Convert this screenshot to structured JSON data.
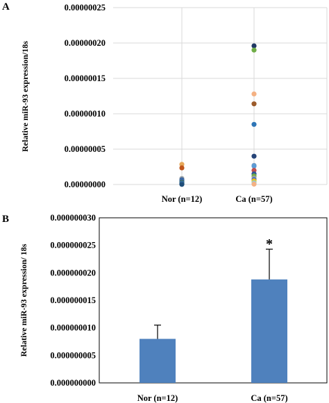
{
  "chart_data": [
    {
      "panel_label": "A",
      "type": "scatter",
      "categories": [
        "Nor (n=12)",
        "Ca (n=57)"
      ],
      "ylabel": "Relative miR-93 expression/18s",
      "ylim": [
        0,
        2.5e-07
      ],
      "yticks": [
        "0.00000000",
        "0.00000005",
        "0.00000010",
        "0.00000015",
        "0.00000020",
        "0.00000025"
      ],
      "grid": true,
      "series": [
        {
          "category": "Nor (n=12)",
          "points": [
            {
              "y": 2.85e-08,
              "color": "#e6a85a"
            },
            {
              "y": 2.35e-08,
              "color": "#c0561c"
            },
            {
              "y": 8.5e-09,
              "color": "#9aa4aa"
            },
            {
              "y": 6.5e-09,
              "color": "#2f5597"
            },
            {
              "y": 5e-09,
              "color": "#4a7fb5"
            },
            {
              "y": 3.5e-09,
              "color": "#1f3f6d"
            },
            {
              "y": 2.5e-09,
              "color": "#70ad47"
            },
            {
              "y": 2e-09,
              "color": "#3a6ea5"
            },
            {
              "y": 1.5e-09,
              "color": "#2e75b6"
            },
            {
              "y": 1e-09,
              "color": "#264478"
            },
            {
              "y": 5e-10,
              "color": "#5b9bd5"
            },
            {
              "y": 2e-10,
              "color": "#1f4e79"
            }
          ]
        },
        {
          "category": "Ca (n=57)",
          "points": [
            {
              "y": 1.96e-07,
              "color": "#203864"
            },
            {
              "y": 1.9e-07,
              "color": "#70ad47"
            },
            {
              "y": 1.28e-07,
              "color": "#f4b183"
            },
            {
              "y": 1.14e-07,
              "color": "#9c5b2b"
            },
            {
              "y": 8.5e-08,
              "color": "#2e75b6"
            },
            {
              "y": 4e-08,
              "color": "#264478"
            },
            {
              "y": 2.7e-08,
              "color": "#7f9fc3"
            },
            {
              "y": 2.6e-08,
              "color": "#5b9bd5"
            },
            {
              "y": 2e-08,
              "color": "#c05050"
            },
            {
              "y": 1.5e-08,
              "color": "#2f5597"
            },
            {
              "y": 1.2e-08,
              "color": "#70ad47"
            },
            {
              "y": 9e-09,
              "color": "#a5a5a5"
            },
            {
              "y": 7e-09,
              "color": "#4472c4"
            },
            {
              "y": 5e-09,
              "color": "#ffc000"
            },
            {
              "y": 3e-09,
              "color": "#a9d18e"
            },
            {
              "y": 1.5e-09,
              "color": "#9dc3e6"
            },
            {
              "y": 5e-10,
              "color": "#f4b183"
            }
          ]
        }
      ]
    },
    {
      "panel_label": "B",
      "type": "bar",
      "categories": [
        "Nor (n=12)",
        "Ca (n=57)"
      ],
      "values": [
        8e-09,
        1.88e-08
      ],
      "error_upper": [
        2.5e-09,
        5.5e-09
      ],
      "annotations": [
        {
          "category": "Ca (n=57)",
          "text": "*"
        }
      ],
      "ylabel": "Relative miR-93 expression/ 18s",
      "ylim": [
        0,
        3e-08
      ],
      "yticks": [
        "0.000000000",
        "0.000000005",
        "0.000000010",
        "0.000000015",
        "0.000000020",
        "0.000000025",
        "0.000000030"
      ],
      "grid": false,
      "bar_color": "#4f81bd"
    }
  ]
}
